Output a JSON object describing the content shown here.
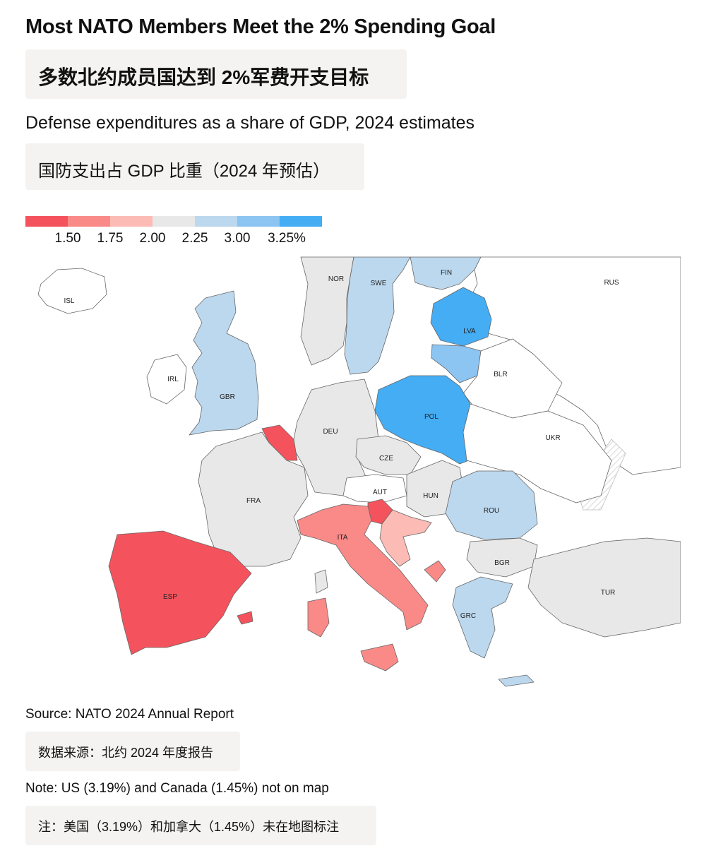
{
  "header": {
    "title": "Most NATO Members Meet the 2% Spending Goal",
    "title_zh": "多数北约成员国达到 2%军费开支目标",
    "subtitle": "Defense expenditures as a share of GDP, 2024 estimates",
    "subtitle_zh": "国防支出占 GDP 比重（2024 年预估）"
  },
  "legend": {
    "colors": [
      "#f4535d",
      "#f98a88",
      "#fcbbb5",
      "#e8e8e8",
      "#bcd8ee",
      "#8cc4f2",
      "#44adf4"
    ],
    "ticks": [
      "1.50",
      "1.75",
      "2.00",
      "2.25",
      "3.00",
      "3.25%"
    ]
  },
  "map": {
    "countries": [
      {
        "code": "ISL",
        "color": "#ffffff"
      },
      {
        "code": "NOR",
        "color": "#e8e8e8"
      },
      {
        "code": "SWE",
        "color": "#bcd8ee"
      },
      {
        "code": "FIN",
        "color": "#bcd8ee"
      },
      {
        "code": "RUS",
        "color": "#ffffff"
      },
      {
        "code": "LVA",
        "color": "#44adf4"
      },
      {
        "code": "IRL",
        "color": "#ffffff"
      },
      {
        "code": "GBR",
        "color": "#bcd8ee"
      },
      {
        "code": "BLR",
        "color": "#ffffff"
      },
      {
        "code": "DEU",
        "color": "#e8e8e8"
      },
      {
        "code": "POL",
        "color": "#44adf4"
      },
      {
        "code": "UKR",
        "color": "#ffffff"
      },
      {
        "code": "CZE",
        "color": "#e8e8e8"
      },
      {
        "code": "AUT",
        "color": "#ffffff"
      },
      {
        "code": "HUN",
        "color": "#e8e8e8"
      },
      {
        "code": "FRA",
        "color": "#e8e8e8"
      },
      {
        "code": "ROU",
        "color": "#bcd8ee"
      },
      {
        "code": "ITA",
        "color": "#f98a88"
      },
      {
        "code": "BGR",
        "color": "#e8e8e8"
      },
      {
        "code": "ESP",
        "color": "#f4535d"
      },
      {
        "code": "TUR",
        "color": "#e8e8e8"
      },
      {
        "code": "GRC",
        "color": "#bcd8ee"
      }
    ]
  },
  "footer": {
    "source": "Source: NATO 2024 Annual Report",
    "source_zh": "数据来源：北约 2024 年度报告",
    "note": "Note: US (3.19%) and Canada (1.45%) not on map",
    "note_zh": "注：美国（3.19%）和加拿大（1.45%）未在地图标注"
  }
}
